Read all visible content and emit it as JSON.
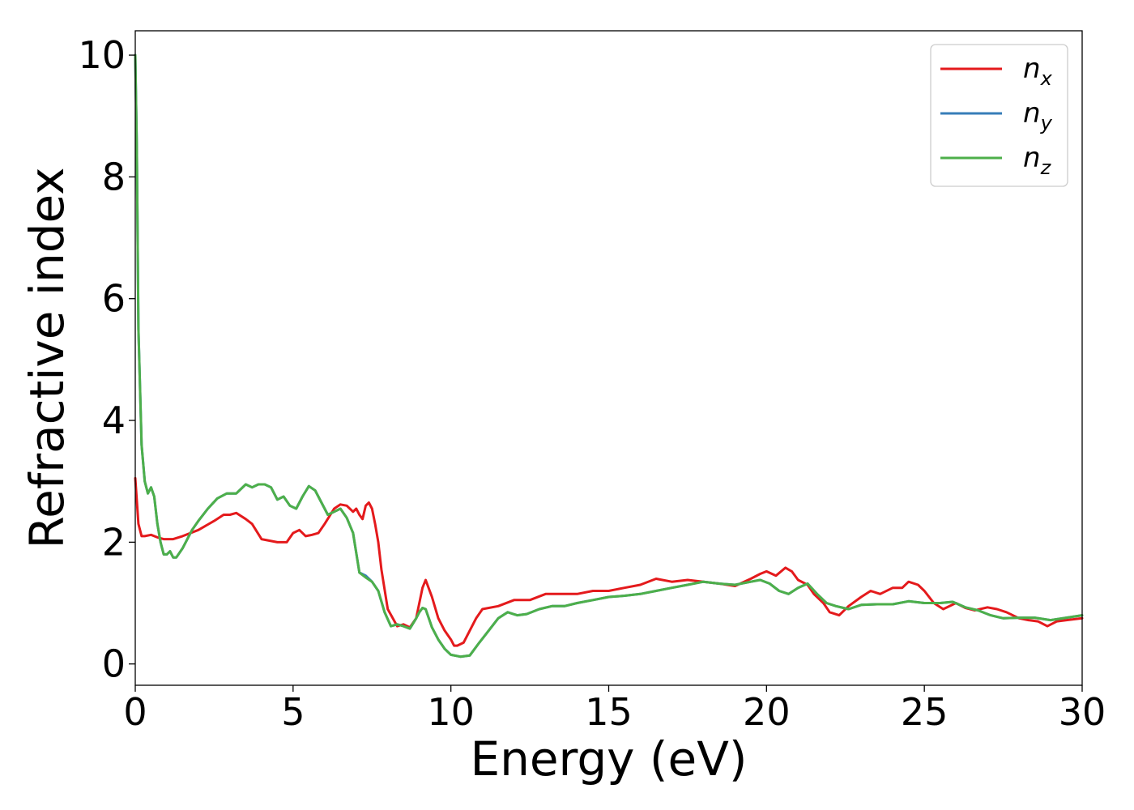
{
  "chart_data": {
    "type": "line",
    "xlabel": "Energy (eV)",
    "ylabel": "Refractive index",
    "xlim": [
      0,
      30
    ],
    "ylim": [
      -0.35,
      10.4
    ],
    "xticks": [
      "0",
      "5",
      "10",
      "15",
      "20",
      "25",
      "30"
    ],
    "yticks": [
      "0",
      "2",
      "4",
      "6",
      "8",
      "10"
    ],
    "grid": false,
    "legend_position": "top-right",
    "series": [
      {
        "name": "n",
        "subscript": "x",
        "color": "#e41a1c",
        "x": [
          0,
          0.1,
          0.2,
          0.3,
          0.5,
          0.7,
          0.9,
          1.2,
          1.5,
          2.0,
          2.5,
          2.8,
          3.0,
          3.2,
          3.5,
          3.7,
          4.0,
          4.5,
          4.8,
          5.0,
          5.2,
          5.4,
          5.6,
          5.8,
          6.0,
          6.3,
          6.5,
          6.7,
          6.9,
          7.0,
          7.1,
          7.2,
          7.3,
          7.4,
          7.5,
          7.6,
          7.7,
          7.8,
          8.0,
          8.3,
          8.5,
          8.7,
          8.9,
          9.0,
          9.1,
          9.2,
          9.4,
          9.6,
          9.8,
          10.0,
          10.1,
          10.2,
          10.4,
          10.6,
          10.8,
          11.0,
          11.5,
          12.0,
          12.5,
          13.0,
          13.5,
          14.0,
          14.5,
          15.0,
          15.5,
          16.0,
          16.5,
          17.0,
          17.5,
          18.0,
          18.5,
          19.0,
          19.5,
          19.8,
          20.0,
          20.3,
          20.6,
          20.8,
          21.0,
          21.3,
          21.5,
          21.8,
          22.0,
          22.3,
          22.6,
          23.0,
          23.3,
          23.6,
          24.0,
          24.3,
          24.5,
          24.8,
          25.0,
          25.3,
          25.6,
          26.0,
          26.3,
          26.6,
          27.0,
          27.3,
          27.6,
          28.0,
          28.3,
          28.6,
          28.9,
          29.2,
          29.5,
          30.0
        ],
        "y": [
          3.05,
          2.3,
          2.1,
          2.1,
          2.12,
          2.08,
          2.05,
          2.05,
          2.1,
          2.2,
          2.35,
          2.45,
          2.45,
          2.48,
          2.38,
          2.3,
          2.05,
          2.0,
          2.0,
          2.15,
          2.2,
          2.1,
          2.12,
          2.15,
          2.3,
          2.55,
          2.62,
          2.6,
          2.5,
          2.55,
          2.45,
          2.38,
          2.6,
          2.65,
          2.55,
          2.3,
          2.0,
          1.55,
          0.9,
          0.62,
          0.65,
          0.6,
          0.75,
          1.0,
          1.25,
          1.38,
          1.1,
          0.75,
          0.55,
          0.4,
          0.3,
          0.3,
          0.35,
          0.55,
          0.75,
          0.9,
          0.95,
          1.05,
          1.05,
          1.15,
          1.15,
          1.15,
          1.2,
          1.2,
          1.25,
          1.3,
          1.4,
          1.35,
          1.38,
          1.35,
          1.32,
          1.28,
          1.4,
          1.48,
          1.52,
          1.45,
          1.58,
          1.52,
          1.38,
          1.3,
          1.15,
          1.0,
          0.85,
          0.8,
          0.95,
          1.1,
          1.2,
          1.15,
          1.25,
          1.25,
          1.35,
          1.3,
          1.2,
          1.0,
          0.9,
          1.0,
          0.92,
          0.88,
          0.93,
          0.9,
          0.85,
          0.75,
          0.72,
          0.7,
          0.62,
          0.7,
          0.72,
          0.75
        ]
      },
      {
        "name": "n",
        "subscript": "y",
        "color": "#377eb8",
        "x": [
          0,
          0.05,
          0.1,
          0.2,
          0.3,
          0.4,
          0.5,
          0.6,
          0.7,
          0.8,
          0.9,
          1.0,
          1.1,
          1.2,
          1.3,
          1.5,
          1.8,
          2.0,
          2.3,
          2.6,
          2.9,
          3.2,
          3.5,
          3.7,
          3.9,
          4.1,
          4.3,
          4.5,
          4.7,
          4.9,
          5.1,
          5.3,
          5.5,
          5.7,
          5.9,
          6.1,
          6.3,
          6.5,
          6.7,
          6.9,
          7.1,
          7.3,
          7.5,
          7.7,
          7.9,
          8.1,
          8.3,
          8.5,
          8.7,
          8.9,
          9.0,
          9.1,
          9.2,
          9.4,
          9.6,
          9.8,
          10.0,
          10.3,
          10.6,
          10.9,
          11.2,
          11.5,
          11.8,
          12.1,
          12.4,
          12.8,
          13.2,
          13.6,
          14.0,
          14.5,
          15.0,
          15.5,
          16.0,
          16.5,
          17.0,
          17.5,
          18.0,
          18.5,
          19.0,
          19.5,
          19.8,
          20.1,
          20.4,
          20.7,
          21.0,
          21.3,
          21.6,
          21.9,
          22.2,
          22.6,
          23.0,
          23.5,
          24.0,
          24.5,
          25.0,
          25.5,
          25.9,
          26.3,
          26.7,
          27.1,
          27.5,
          28.0,
          28.5,
          29.0,
          29.5,
          30.0
        ],
        "y": [
          10.0,
          8.5,
          5.5,
          3.6,
          3.0,
          2.8,
          2.9,
          2.75,
          2.3,
          2.0,
          1.8,
          1.8,
          1.85,
          1.75,
          1.75,
          1.9,
          2.2,
          2.35,
          2.55,
          2.72,
          2.8,
          2.8,
          2.95,
          2.9,
          2.95,
          2.95,
          2.9,
          2.7,
          2.75,
          2.6,
          2.55,
          2.75,
          2.92,
          2.85,
          2.65,
          2.45,
          2.5,
          2.55,
          2.4,
          2.15,
          1.5,
          1.45,
          1.35,
          1.2,
          0.85,
          0.62,
          0.65,
          0.62,
          0.58,
          0.75,
          0.85,
          0.92,
          0.9,
          0.6,
          0.4,
          0.25,
          0.15,
          0.12,
          0.14,
          0.35,
          0.55,
          0.75,
          0.85,
          0.8,
          0.82,
          0.9,
          0.95,
          0.95,
          1.0,
          1.05,
          1.1,
          1.12,
          1.15,
          1.2,
          1.25,
          1.3,
          1.35,
          1.32,
          1.3,
          1.35,
          1.38,
          1.32,
          1.2,
          1.15,
          1.25,
          1.32,
          1.15,
          1.0,
          0.95,
          0.9,
          0.97,
          0.98,
          0.98,
          1.03,
          1.0,
          1.0,
          1.02,
          0.93,
          0.88,
          0.8,
          0.75,
          0.76,
          0.76,
          0.72,
          0.76,
          0.8
        ]
      },
      {
        "name": "n",
        "subscript": "z",
        "color": "#4daf4a",
        "x": [
          0,
          0.05,
          0.1,
          0.2,
          0.3,
          0.4,
          0.5,
          0.6,
          0.7,
          0.8,
          0.9,
          1.0,
          1.1,
          1.2,
          1.3,
          1.5,
          1.8,
          2.0,
          2.3,
          2.6,
          2.9,
          3.2,
          3.5,
          3.7,
          3.9,
          4.1,
          4.3,
          4.5,
          4.7,
          4.9,
          5.1,
          5.3,
          5.5,
          5.7,
          5.9,
          6.1,
          6.3,
          6.5,
          6.7,
          6.9,
          7.1,
          7.3,
          7.5,
          7.7,
          7.9,
          8.1,
          8.3,
          8.5,
          8.7,
          8.9,
          9.0,
          9.1,
          9.2,
          9.4,
          9.6,
          9.8,
          10.0,
          10.3,
          10.6,
          10.9,
          11.2,
          11.5,
          11.8,
          12.1,
          12.4,
          12.8,
          13.2,
          13.6,
          14.0,
          14.5,
          15.0,
          15.5,
          16.0,
          16.5,
          17.0,
          17.5,
          18.0,
          18.5,
          19.0,
          19.5,
          19.8,
          20.1,
          20.4,
          20.7,
          21.0,
          21.3,
          21.6,
          21.9,
          22.2,
          22.6,
          23.0,
          23.5,
          24.0,
          24.5,
          25.0,
          25.5,
          25.9,
          26.3,
          26.7,
          27.1,
          27.5,
          28.0,
          28.5,
          29.0,
          29.5,
          30.0
        ],
        "y": [
          10.0,
          8.5,
          5.5,
          3.6,
          3.0,
          2.8,
          2.9,
          2.75,
          2.3,
          2.0,
          1.8,
          1.8,
          1.85,
          1.75,
          1.75,
          1.9,
          2.2,
          2.35,
          2.55,
          2.72,
          2.8,
          2.8,
          2.95,
          2.9,
          2.95,
          2.95,
          2.9,
          2.7,
          2.75,
          2.6,
          2.55,
          2.75,
          2.92,
          2.85,
          2.65,
          2.45,
          2.5,
          2.55,
          2.4,
          2.15,
          1.5,
          1.42,
          1.35,
          1.2,
          0.85,
          0.62,
          0.65,
          0.62,
          0.58,
          0.75,
          0.85,
          0.92,
          0.9,
          0.6,
          0.4,
          0.25,
          0.15,
          0.12,
          0.14,
          0.35,
          0.55,
          0.75,
          0.85,
          0.8,
          0.82,
          0.9,
          0.95,
          0.95,
          1.0,
          1.05,
          1.1,
          1.12,
          1.15,
          1.2,
          1.25,
          1.3,
          1.35,
          1.32,
          1.3,
          1.35,
          1.38,
          1.32,
          1.2,
          1.15,
          1.25,
          1.32,
          1.15,
          1.0,
          0.95,
          0.9,
          0.97,
          0.98,
          0.98,
          1.03,
          1.0,
          1.0,
          1.02,
          0.93,
          0.88,
          0.8,
          0.75,
          0.76,
          0.76,
          0.72,
          0.76,
          0.8
        ]
      }
    ]
  }
}
